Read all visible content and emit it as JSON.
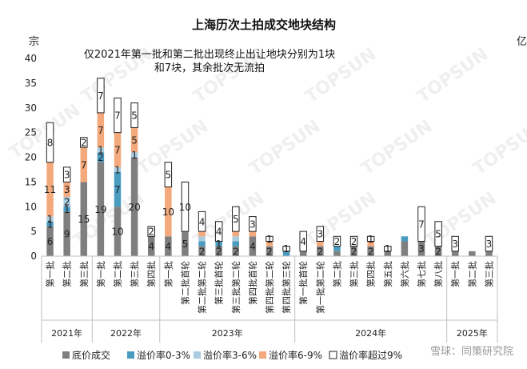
{
  "chart_data": {
    "type": "bar",
    "stacked": true,
    "title": "上海历次土拍成交地块结构",
    "ylabel_left": "宗",
    "ylabel_right": "亿",
    "ylim": [
      0,
      40
    ],
    "yticks": [
      0,
      5,
      10,
      15,
      20,
      25,
      30,
      35,
      40
    ],
    "annotation": "仅2021年第一批和第二批出现终止出让地块分别为1块和7块，其余批次无流拍",
    "annotation_lines": [
      "仅2021年第一批和第二批出现终止出让地块分别为1块",
      "和7块，其余批次无流拍"
    ],
    "categories": [
      "第一批",
      "第二批",
      "第三批",
      "第一批",
      "第二批",
      "第三批",
      "第四批",
      "第一批",
      "第二批首轮",
      "第二批第二轮",
      "第三批首轮",
      "第三批第二轮",
      "第四批首轮",
      "第四批第二轮",
      "第四批第三轮",
      "第一批首轮",
      "第一批第二轮",
      "第二批",
      "第三批",
      "第四批",
      "第五批",
      "第六批",
      "第七批",
      "第八批",
      "第一批",
      "第二批",
      "第三批"
    ],
    "year_groups": [
      {
        "label": "2021年",
        "start": 0,
        "end": 2
      },
      {
        "label": "2022年",
        "start": 3,
        "end": 6
      },
      {
        "label": "2023年",
        "start": 7,
        "end": 14
      },
      {
        "label": "2024年",
        "start": 15,
        "end": 23
      },
      {
        "label": "2025年",
        "start": 24,
        "end": 26
      }
    ],
    "series": [
      {
        "name": "底价成交",
        "color": "#7f7f7f",
        "values": [
          6,
          9,
          15,
          19,
          10,
          20,
          4,
          4,
          5,
          2,
          2,
          2,
          4,
          2,
          0,
          1,
          2,
          1,
          2,
          2,
          1,
          3,
          3,
          2,
          1,
          1,
          1
        ]
      },
      {
        "name": "溢价率0-3%",
        "color": "#4a9bc0",
        "values": [
          1,
          1,
          0,
          2,
          7,
          0,
          0,
          0,
          0,
          1,
          1,
          1,
          0,
          0,
          1,
          0,
          0,
          1,
          0,
          0,
          0,
          1,
          0,
          0,
          0,
          0,
          0
        ]
      },
      {
        "name": "溢价率3-6%",
        "color": "#a9cbe0",
        "values": [
          1,
          2,
          0,
          1,
          1,
          1,
          0,
          0,
          0,
          1,
          0,
          1,
          0,
          0,
          0,
          0,
          0,
          0,
          0,
          0,
          0,
          0,
          0,
          0,
          0,
          0,
          0
        ]
      },
      {
        "name": "溢价率6-9%",
        "color": "#f4a97c",
        "values": [
          11,
          3,
          7,
          7,
          7,
          5,
          0,
          10,
          0,
          1,
          0,
          1,
          1,
          1,
          0,
          0,
          1,
          0,
          0,
          1,
          0,
          0,
          0,
          0,
          0,
          0,
          0
        ]
      },
      {
        "name": "溢价率超过9%",
        "color": "#ffffff",
        "values": [
          8,
          3,
          2,
          7,
          7,
          5,
          2,
          5,
          10,
          4,
          4,
          5,
          3,
          1,
          1,
          4,
          3,
          2,
          2,
          1,
          1,
          0,
          7,
          5,
          3,
          0,
          3
        ]
      }
    ],
    "data_labels": [
      [
        "6",
        "9",
        "15",
        "19",
        "10",
        "20",
        "4",
        "4",
        "5",
        "2",
        "2",
        "2",
        "4",
        "2",
        "",
        "",
        "2",
        "",
        "2",
        "2",
        "",
        "",
        "3",
        "2",
        "",
        "",
        ""
      ],
      [
        "1",
        "1",
        "",
        "2",
        "7",
        "",
        "",
        "",
        "",
        "",
        "1",
        "",
        "",
        "",
        "",
        "",
        "",
        "",
        "",
        "",
        "",
        "",
        "",
        "",
        "",
        "",
        ""
      ],
      [
        "1",
        "2",
        "",
        "1",
        "1",
        "1",
        "",
        "",
        "",
        "",
        "",
        "",
        "",
        "",
        "",
        "",
        "",
        "",
        "",
        "",
        "",
        "",
        "",
        "",
        "",
        "",
        ""
      ],
      [
        "11",
        "3",
        "7",
        "7",
        "7",
        "5",
        "",
        "10",
        "",
        "",
        "",
        "",
        "",
        "",
        "",
        "",
        "",
        "",
        "",
        "",
        "",
        "",
        "",
        "",
        "",
        "",
        ""
      ],
      [
        "8",
        "3",
        "2",
        "7",
        "7",
        "5",
        "2",
        "5",
        "10",
        "4",
        "4",
        "5",
        "3",
        "1",
        "1",
        "4",
        "3",
        "2",
        "2",
        "1",
        "1",
        "",
        "7",
        "5",
        "3",
        "",
        "3"
      ]
    ],
    "legend_placement": "bottom"
  },
  "watermark": {
    "brand": "TOPSUN",
    "text": "雪球：同策研究院"
  }
}
